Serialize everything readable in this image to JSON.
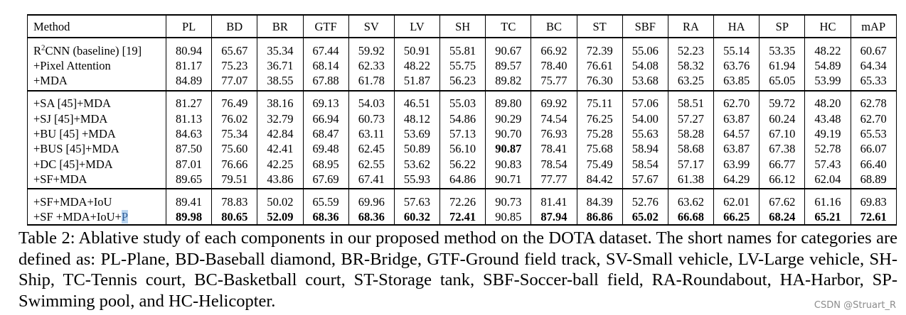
{
  "table": {
    "columns": [
      "Method",
      "PL",
      "BD",
      "BR",
      "GTF",
      "SV",
      "LV",
      "SH",
      "TC",
      "BC",
      "ST",
      "SBF",
      "RA",
      "HA",
      "SP",
      "HC",
      "mAP"
    ],
    "groups": [
      [
        {
          "method": "R²CNN (baseline) [19]",
          "values": [
            "80.94",
            "65.67",
            "35.34",
            "67.44",
            "59.92",
            "50.91",
            "55.81",
            "90.67",
            "66.92",
            "72.39",
            "55.06",
            "52.23",
            "55.14",
            "53.35",
            "48.22",
            "60.67"
          ],
          "bold": []
        },
        {
          "method": "+Pixel Attention",
          "values": [
            "81.17",
            "75.23",
            "36.71",
            "68.14",
            "62.33",
            "48.22",
            "55.75",
            "89.57",
            "78.40",
            "76.61",
            "54.08",
            "58.32",
            "63.76",
            "61.94",
            "54.89",
            "64.34"
          ],
          "bold": []
        },
        {
          "method": "+MDA",
          "values": [
            "84.89",
            "77.07",
            "38.55",
            "67.88",
            "61.78",
            "51.87",
            "56.23",
            "89.82",
            "75.77",
            "76.30",
            "53.68",
            "63.25",
            "63.85",
            "65.05",
            "53.99",
            "65.33"
          ],
          "bold": []
        }
      ],
      [
        {
          "method": "+SA [45]+MDA",
          "values": [
            "81.27",
            "76.49",
            "38.16",
            "69.13",
            "54.03",
            "46.51",
            "55.03",
            "89.80",
            "69.92",
            "75.11",
            "57.06",
            "58.51",
            "62.70",
            "59.72",
            "48.20",
            "62.78"
          ],
          "bold": []
        },
        {
          "method": "+SJ [45]+MDA",
          "values": [
            "81.13",
            "76.02",
            "32.79",
            "66.94",
            "60.73",
            "48.12",
            "54.86",
            "90.29",
            "74.54",
            "76.25",
            "54.00",
            "57.27",
            "63.87",
            "60.24",
            "43.48",
            "62.70"
          ],
          "bold": []
        },
        {
          "method": "+BU [45] +MDA",
          "values": [
            "84.63",
            "75.34",
            "42.84",
            "68.47",
            "63.11",
            "53.69",
            "57.13",
            "90.70",
            "76.93",
            "75.28",
            "55.63",
            "58.28",
            "64.57",
            "67.10",
            "49.19",
            "65.53"
          ],
          "bold": []
        },
        {
          "method": "+BUS [45]+MDA",
          "values": [
            "87.50",
            "75.60",
            "42.41",
            "69.48",
            "62.45",
            "50.89",
            "56.10",
            "90.87",
            "78.41",
            "75.68",
            "58.94",
            "58.68",
            "63.87",
            "67.38",
            "52.78",
            "66.07"
          ],
          "bold": [
            7
          ]
        },
        {
          "method": "+DC [45]+MDA",
          "values": [
            "87.01",
            "76.66",
            "42.25",
            "68.95",
            "62.55",
            "53.62",
            "56.22",
            "90.83",
            "78.54",
            "75.49",
            "58.54",
            "57.17",
            "63.99",
            "66.77",
            "57.43",
            "66.40"
          ],
          "bold": []
        },
        {
          "method": "+SF+MDA",
          "values": [
            "89.65",
            "79.51",
            "43.86",
            "67.69",
            "67.41",
            "55.93",
            "64.86",
            "90.71",
            "77.77",
            "84.42",
            "57.67",
            "61.38",
            "64.29",
            "66.12",
            "62.04",
            "68.89"
          ],
          "bold": []
        }
      ],
      [
        {
          "method": "+SF+MDA+IoU",
          "values": [
            "89.41",
            "78.83",
            "50.02",
            "65.59",
            "69.96",
            "57.63",
            "72.26",
            "90.73",
            "81.41",
            "84.39",
            "52.76",
            "63.62",
            "62.01",
            "67.62",
            "61.16",
            "69.83"
          ],
          "bold": []
        },
        {
          "method": "+SF +MDA+IoU+",
          "method_hl": "P",
          "values": [
            "89.98",
            "80.65",
            "52.09",
            "68.36",
            "68.36",
            "60.32",
            "72.41",
            "90.85",
            "87.94",
            "86.86",
            "65.02",
            "66.68",
            "66.25",
            "68.24",
            "65.21",
            "72.61"
          ],
          "bold": [
            0,
            1,
            2,
            3,
            4,
            5,
            6,
            8,
            9,
            10,
            11,
            12,
            13,
            14,
            15
          ]
        }
      ]
    ]
  },
  "caption": "Table 2: Ablative study of each components in our proposed method on the DOTA dataset. The short names for categories are defined as: PL-Plane, BD-Baseball diamond, BR-Bridge, GTF-Ground field track, SV-Small vehicle, LV-Large vehicle, SH-Ship, TC-Tennis court, BC-Basketball court, ST-Storage tank, SBF-Soccer-ball field, RA-Roundabout, HA-Harbor, SP-Swimming pool, and HC-Helicopter.",
  "watermark": "CSDN @Struart_R"
}
